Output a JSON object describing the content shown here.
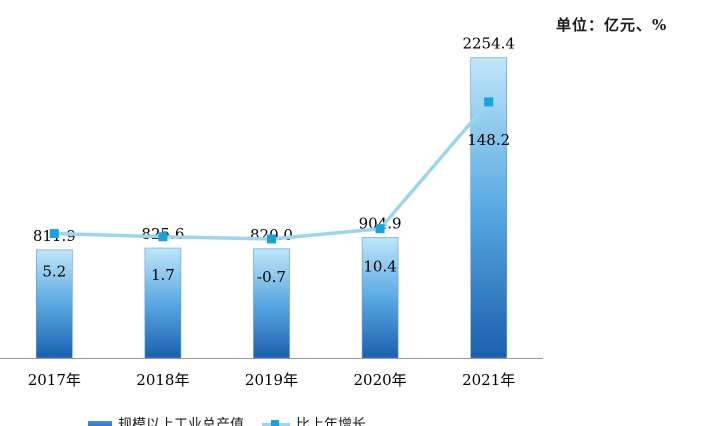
{
  "unit_label": "单位：亿元、%",
  "colors": {
    "bar_top": "#bfe6f8",
    "bar_mid": "#5aa9e2",
    "bar_bottom": "#1c5fae",
    "line": "#9dd5ee",
    "marker": "#16a3de",
    "axis": "#9a9a9a"
  },
  "chart_data": {
    "type": "bar",
    "categories": [
      "2017年",
      "2018年",
      "2019年",
      "2020年",
      "2021年"
    ],
    "series": [
      {
        "name": "规模以上工业总产值",
        "type": "bar",
        "values": [
          811.9,
          825.6,
          820.0,
          904.9,
          2254.4
        ],
        "labels": [
          "811.9",
          "825.6",
          "820.0",
          "904.9",
          "2254.4"
        ]
      },
      {
        "name": "比上年增长",
        "type": "line",
        "values": [
          5.2,
          1.7,
          -0.7,
          10.4,
          148.2
        ],
        "labels": [
          "5.2",
          "1.7",
          "-0.7",
          "10.4",
          "148.2"
        ]
      }
    ],
    "ylim": [
      0,
      2350
    ],
    "y2lim": [
      -130,
      210
    ],
    "grid": false,
    "legend_position": "bottom-left"
  }
}
